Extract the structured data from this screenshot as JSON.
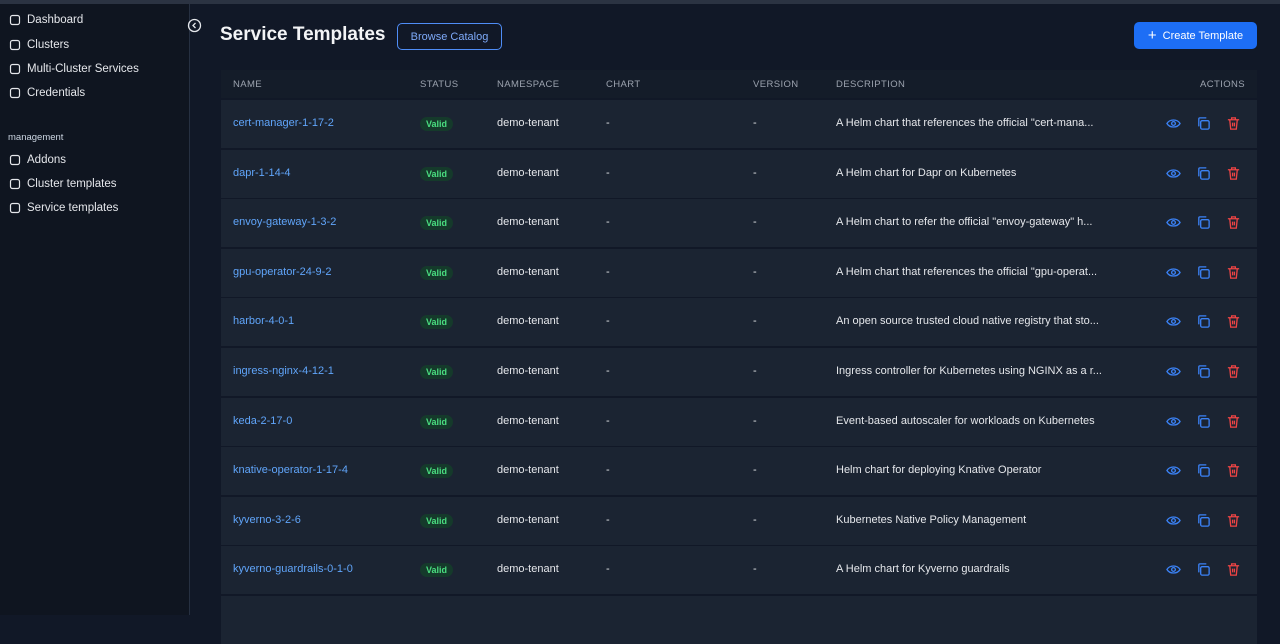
{
  "sidebar": {
    "nav": [
      "Dashboard",
      "Clusters",
      "Multi-Cluster Services",
      "Credentials"
    ],
    "section": "management",
    "management": [
      "Addons",
      "Cluster templates",
      "Service templates"
    ]
  },
  "header": {
    "title": "Service Templates",
    "browse_button": "Browse Catalog",
    "create_button": "Create Template"
  },
  "table": {
    "columns": [
      "NAME",
      "STATUS",
      "NAMESPACE",
      "CHART",
      "VERSION",
      "DESCRIPTION",
      "ACTIONS"
    ],
    "rows": [
      [
        "cert-manager-1-17-2",
        "Valid",
        "demo-tenant",
        "-",
        "-",
        "A Helm chart that references the official \"cert-mana..."
      ],
      [
        "dapr-1-14-4",
        "Valid",
        "demo-tenant",
        "-",
        "-",
        "A Helm chart for Dapr on Kubernetes"
      ],
      [
        "envoy-gateway-1-3-2",
        "Valid",
        "demo-tenant",
        "-",
        "-",
        "A Helm chart to refer the official \"envoy-gateway\" h..."
      ],
      [
        "gpu-operator-24-9-2",
        "Valid",
        "demo-tenant",
        "-",
        "-",
        "A Helm chart that references the official \"gpu-operat..."
      ],
      [
        "harbor-4-0-1",
        "Valid",
        "demo-tenant",
        "-",
        "-",
        "An open source trusted cloud native registry that sto..."
      ],
      [
        "ingress-nginx-4-12-1",
        "Valid",
        "demo-tenant",
        "-",
        "-",
        "Ingress controller for Kubernetes using NGINX as a r..."
      ],
      [
        "keda-2-17-0",
        "Valid",
        "demo-tenant",
        "-",
        "-",
        "Event-based autoscaler for workloads on Kubernetes"
      ],
      [
        "knative-operator-1-17-4",
        "Valid",
        "demo-tenant",
        "-",
        "-",
        "Helm chart for deploying Knative Operator"
      ],
      [
        "kyverno-3-2-6",
        "Valid",
        "demo-tenant",
        "-",
        "-",
        "Kubernetes Native Policy Management"
      ],
      [
        "kyverno-guardrails-0-1-0",
        "Valid",
        "demo-tenant",
        "-",
        "-",
        "A Helm chart for Kyverno guardrails"
      ]
    ]
  }
}
